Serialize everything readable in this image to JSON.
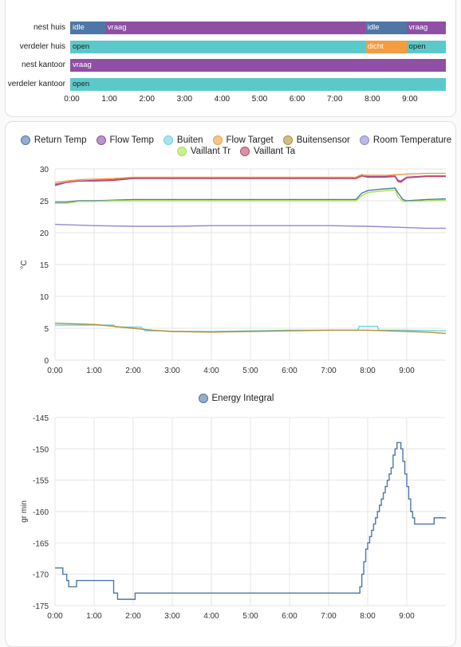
{
  "timeline": {
    "rows": [
      {
        "label": "nest huis",
        "segments": [
          {
            "state": "idle",
            "start": 0.0,
            "end": 0.93,
            "color": "#4e77a8"
          },
          {
            "state": "vraag",
            "start": 0.93,
            "end": 7.85,
            "color": "#8e4fa4"
          },
          {
            "state": "idle",
            "start": 7.85,
            "end": 8.95,
            "color": "#4e77a8"
          },
          {
            "state": "vraag",
            "start": 8.95,
            "end": 10.0,
            "color": "#8e4fa4"
          }
        ]
      },
      {
        "label": "verdeler huis",
        "segments": [
          {
            "state": "open",
            "start": 0.0,
            "end": 7.85,
            "color": "#5bc9c9"
          },
          {
            "state": "dicht",
            "start": 7.85,
            "end": 8.95,
            "color": "#f39c42"
          },
          {
            "state": "open",
            "start": 8.95,
            "end": 10.0,
            "color": "#5bc9c9"
          }
        ]
      },
      {
        "label": "nest kantoor",
        "segments": [
          {
            "state": "vraag",
            "start": 0.0,
            "end": 10.0,
            "color": "#8e4fa4"
          }
        ]
      },
      {
        "label": "verdeler kantoor",
        "segments": [
          {
            "state": "open",
            "start": 0.0,
            "end": 10.0,
            "color": "#5bc9c9"
          }
        ]
      }
    ],
    "ticks": [
      "0:00",
      "1:00",
      "2:00",
      "3:00",
      "4:00",
      "5:00",
      "6:00",
      "7:00",
      "8:00",
      "9:00"
    ]
  },
  "chart_data": [
    {
      "type": "line",
      "ylabel": "°C",
      "ylim": [
        0,
        30
      ],
      "yticks": [
        0,
        5,
        10,
        15,
        20,
        25,
        30
      ],
      "xlim": [
        0,
        10
      ],
      "xticks": [
        "0:00",
        "1:00",
        "2:00",
        "3:00",
        "4:00",
        "5:00",
        "6:00",
        "7:00",
        "8:00",
        "9:00"
      ],
      "grid": true,
      "legend_position": "top",
      "series": [
        {
          "name": "Return Temp",
          "color": "#4e77a8",
          "x": [
            0,
            0.3,
            0.6,
            1.0,
            1.5,
            2.0,
            3.0,
            4.0,
            5.0,
            6.0,
            7.0,
            7.7,
            7.85,
            8.0,
            8.3,
            8.7,
            8.78,
            8.9,
            9.0,
            9.5,
            10.0
          ],
          "y": [
            24.8,
            24.8,
            25.0,
            25.0,
            25.1,
            25.2,
            25.2,
            25.2,
            25.2,
            25.2,
            25.2,
            25.2,
            26.2,
            26.6,
            26.8,
            27.0,
            26.2,
            25.2,
            25.0,
            25.2,
            25.3
          ]
        },
        {
          "name": "Flow Temp",
          "color": "#8e4fa4",
          "x": [
            0,
            0.3,
            0.6,
            1.0,
            1.5,
            2.0,
            3.0,
            4.0,
            5.0,
            6.0,
            7.0,
            7.7,
            7.85,
            8.0,
            8.4,
            8.7,
            8.78,
            8.85,
            9.0,
            9.5,
            10.0
          ],
          "y": [
            27.6,
            27.9,
            28.1,
            28.2,
            28.3,
            28.6,
            28.6,
            28.6,
            28.6,
            28.6,
            28.6,
            28.6,
            29.1,
            28.8,
            28.8,
            28.9,
            28.2,
            28.1,
            28.7,
            28.9,
            28.9
          ]
        },
        {
          "name": "Buiten",
          "color": "#6fd2dc",
          "x": [
            0,
            1.0,
            1.5,
            1.55,
            2.2,
            2.3,
            2.8,
            3.0,
            4.0,
            5.0,
            6.0,
            7.0,
            7.75,
            7.78,
            8.25,
            8.28,
            9.0,
            10.0
          ],
          "y": [
            5.5,
            5.5,
            5.5,
            5.2,
            5.2,
            4.6,
            4.6,
            4.5,
            4.5,
            4.6,
            4.7,
            4.7,
            4.7,
            5.3,
            5.3,
            4.7,
            4.7,
            4.6
          ]
        },
        {
          "name": "Flow Target",
          "color": "#f39c42",
          "x": [
            0,
            0.3,
            0.6,
            1.0,
            1.5,
            2.0,
            3.0,
            4.0,
            5.0,
            6.0,
            7.0,
            7.7,
            7.8,
            8.0,
            8.5,
            9.0,
            9.5,
            10.0
          ],
          "y": [
            27.9,
            28.1,
            28.3,
            28.4,
            28.5,
            28.7,
            28.7,
            28.7,
            28.7,
            28.7,
            28.7,
            28.7,
            29.0,
            29.0,
            29.0,
            29.2,
            29.3,
            29.3
          ]
        },
        {
          "name": "Buitensensor",
          "color": "#b09238",
          "x": [
            0,
            0.5,
            1.0,
            1.5,
            2.0,
            2.5,
            3.0,
            4.0,
            5.0,
            6.0,
            7.0,
            7.5,
            8.0,
            8.5,
            9.0,
            9.5,
            10.0
          ],
          "y": [
            5.8,
            5.7,
            5.6,
            5.3,
            5.0,
            4.7,
            4.5,
            4.4,
            4.5,
            4.6,
            4.7,
            4.7,
            4.7,
            4.6,
            4.5,
            4.4,
            4.2
          ]
        },
        {
          "name": "Room Temperature",
          "color": "#8f8bd1",
          "x": [
            0,
            1.0,
            2.0,
            3.0,
            4.0,
            5.0,
            6.0,
            7.0,
            8.0,
            9.0,
            9.5,
            10.0
          ],
          "y": [
            21.3,
            21.1,
            21.0,
            21.0,
            21.1,
            21.1,
            21.1,
            21.1,
            21.0,
            20.8,
            20.7,
            20.7
          ]
        },
        {
          "name": "Vaillant Tr",
          "color": "#a6e64a",
          "x": [
            0,
            0.3,
            0.6,
            1.0,
            1.5,
            2.0,
            3.0,
            4.0,
            5.0,
            6.0,
            7.0,
            7.7,
            7.85,
            8.0,
            8.3,
            8.7,
            8.78,
            8.9,
            9.0,
            9.5,
            10.0
          ],
          "y": [
            24.6,
            24.6,
            24.9,
            24.9,
            25.0,
            25.0,
            25.0,
            25.0,
            25.0,
            25.0,
            25.0,
            25.0,
            25.8,
            26.3,
            26.5,
            26.7,
            25.6,
            24.9,
            24.9,
            25.0,
            25.1
          ]
        },
        {
          "name": "Vaillant Ta",
          "color": "#c2486b",
          "x": [
            0,
            0.3,
            0.6,
            1.0,
            1.5,
            2.0,
            3.0,
            4.0,
            5.0,
            6.0,
            7.0,
            7.7,
            7.85,
            8.0,
            8.4,
            8.7,
            8.78,
            8.85,
            9.0,
            9.5,
            10.0
          ],
          "y": [
            27.4,
            27.9,
            28.1,
            28.1,
            28.2,
            28.5,
            28.5,
            28.5,
            28.5,
            28.5,
            28.5,
            28.5,
            28.9,
            28.7,
            28.7,
            28.8,
            28.0,
            27.9,
            28.6,
            28.8,
            28.8
          ]
        }
      ]
    },
    {
      "type": "line",
      "ylabel": "gr min",
      "ylim": [
        -175,
        -145
      ],
      "yticks": [
        -175,
        -170,
        -165,
        -160,
        -155,
        -150,
        -145
      ],
      "xlim": [
        0,
        10
      ],
      "xticks": [
        "0:00",
        "1:00",
        "2:00",
        "3:00",
        "4:00",
        "5:00",
        "6:00",
        "7:00",
        "8:00",
        "9:00"
      ],
      "grid": true,
      "legend_position": "top",
      "step": true,
      "series": [
        {
          "name": "Energy Integral",
          "color": "#4e77a8",
          "x": [
            0,
            0.2,
            0.3,
            0.35,
            0.55,
            1.5,
            1.6,
            2.05,
            7.8,
            7.85,
            7.9,
            7.95,
            8.0,
            8.05,
            8.1,
            8.15,
            8.2,
            8.25,
            8.3,
            8.35,
            8.4,
            8.45,
            8.5,
            8.55,
            8.6,
            8.65,
            8.7,
            8.75,
            8.85,
            8.9,
            8.95,
            9.0,
            9.05,
            9.1,
            9.15,
            9.2,
            9.7,
            10.0
          ],
          "y": [
            -169,
            -170,
            -171,
            -172,
            -171,
            -173,
            -174,
            -173,
            -172,
            -170,
            -168,
            -166,
            -165,
            -164,
            -163,
            -162,
            -161,
            -160,
            -159,
            -158,
            -157,
            -156,
            -155,
            -154,
            -153,
            -151,
            -150,
            -149,
            -150,
            -152,
            -154,
            -156,
            -158,
            -160,
            -161,
            -162,
            -161,
            -161
          ]
        }
      ]
    }
  ]
}
